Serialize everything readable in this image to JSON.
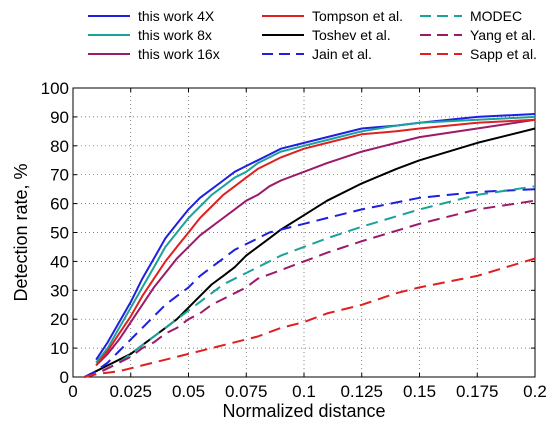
{
  "chart_data": {
    "type": "line",
    "title": "",
    "xlabel": "Normalized distance",
    "ylabel": "Detection rate, %",
    "xlim": [
      0,
      0.2
    ],
    "ylim": [
      0,
      100
    ],
    "xticks": [
      0,
      0.025,
      0.05,
      0.075,
      0.1,
      0.125,
      0.15,
      0.175,
      0.2
    ],
    "xtick_labels": [
      "0",
      "0.025",
      "0.05",
      "0.075",
      "0.1",
      "0.125",
      "0.15",
      "0.175",
      "0.2"
    ],
    "yticks": [
      0,
      10,
      20,
      30,
      40,
      50,
      60,
      70,
      80,
      90,
      100
    ],
    "ytick_labels": [
      "0",
      "10",
      "20",
      "30",
      "40",
      "50",
      "60",
      "70",
      "80",
      "90",
      "100"
    ],
    "grid": true,
    "legend_position": "top",
    "legend_columns": 3,
    "series": [
      {
        "name": "this work 4X",
        "color": "#1f1fe0",
        "dash": "solid",
        "x": [
          0.01,
          0.015,
          0.02,
          0.025,
          0.03,
          0.035,
          0.04,
          0.045,
          0.05,
          0.055,
          0.06,
          0.065,
          0.07,
          0.075,
          0.08,
          0.085,
          0.09,
          0.1,
          0.11,
          0.125,
          0.14,
          0.15,
          0.175,
          0.2
        ],
        "y": [
          6,
          12,
          19,
          26,
          34,
          41,
          48,
          53,
          58,
          62,
          65,
          68,
          71,
          73,
          75,
          77,
          79,
          81,
          83,
          86,
          87,
          88,
          90,
          91
        ]
      },
      {
        "name": "this work 8x",
        "color": "#1aa39a",
        "dash": "solid",
        "x": [
          0.01,
          0.015,
          0.02,
          0.025,
          0.03,
          0.035,
          0.04,
          0.045,
          0.05,
          0.055,
          0.06,
          0.065,
          0.07,
          0.075,
          0.08,
          0.085,
          0.09,
          0.1,
          0.11,
          0.125,
          0.14,
          0.15,
          0.175,
          0.2
        ],
        "y": [
          5,
          10,
          17,
          24,
          31,
          38,
          45,
          50,
          55,
          59,
          63,
          66,
          69,
          71,
          74,
          76,
          78,
          80,
          82,
          85,
          87,
          88,
          89,
          90
        ]
      },
      {
        "name": "this work 16x",
        "color": "#9c1a6a",
        "dash": "solid",
        "x": [
          0.01,
          0.015,
          0.02,
          0.025,
          0.03,
          0.035,
          0.04,
          0.045,
          0.05,
          0.055,
          0.06,
          0.065,
          0.07,
          0.075,
          0.08,
          0.085,
          0.09,
          0.1,
          0.11,
          0.125,
          0.14,
          0.15,
          0.175,
          0.2
        ],
        "y": [
          4,
          8,
          13,
          19,
          25,
          31,
          36,
          41,
          45,
          49,
          52,
          55,
          58,
          61,
          63,
          66,
          68,
          71,
          74,
          78,
          81,
          83,
          86,
          89
        ]
      },
      {
        "name": "Tompson et al.",
        "color": "#e02020",
        "dash": "solid",
        "x": [
          0.01,
          0.015,
          0.02,
          0.025,
          0.03,
          0.035,
          0.04,
          0.045,
          0.05,
          0.055,
          0.06,
          0.065,
          0.07,
          0.075,
          0.08,
          0.085,
          0.09,
          0.1,
          0.11,
          0.125,
          0.14,
          0.15,
          0.175,
          0.2
        ],
        "y": [
          4,
          9,
          15,
          21,
          28,
          34,
          40,
          45,
          50,
          55,
          59,
          63,
          66,
          69,
          72,
          74,
          76,
          79,
          81,
          84,
          85,
          86,
          88,
          89
        ]
      },
      {
        "name": "Toshev et al.",
        "color": "#000000",
        "dash": "solid",
        "x": [
          0.005,
          0.01,
          0.015,
          0.02,
          0.025,
          0.03,
          0.035,
          0.04,
          0.045,
          0.05,
          0.055,
          0.06,
          0.065,
          0.07,
          0.075,
          0.08,
          0.085,
          0.09,
          0.1,
          0.11,
          0.125,
          0.14,
          0.15,
          0.175,
          0.2
        ],
        "y": [
          0,
          2,
          4,
          6,
          8,
          11,
          14,
          17,
          20,
          24,
          28,
          32,
          35,
          38,
          42,
          45,
          48,
          51,
          56,
          61,
          67,
          72,
          75,
          81,
          86
        ]
      },
      {
        "name": "Jain et al.",
        "color": "#1f1fe0",
        "dash": "dashed",
        "x": [
          0.005,
          0.01,
          0.015,
          0.02,
          0.025,
          0.03,
          0.035,
          0.04,
          0.045,
          0.05,
          0.055,
          0.06,
          0.065,
          0.07,
          0.075,
          0.08,
          0.085,
          0.09,
          0.1,
          0.11,
          0.125,
          0.15,
          0.175,
          0.2
        ],
        "y": [
          0,
          2,
          5,
          9,
          13,
          17,
          21,
          25,
          28,
          31,
          35,
          38,
          41,
          44,
          46,
          48,
          50,
          51,
          53,
          55,
          58,
          62,
          64,
          65
        ]
      },
      {
        "name": "MODEC",
        "color": "#1aa39a",
        "dash": "dashed",
        "x": [
          0.005,
          0.01,
          0.015,
          0.02,
          0.025,
          0.03,
          0.035,
          0.04,
          0.045,
          0.05,
          0.055,
          0.06,
          0.065,
          0.07,
          0.075,
          0.08,
          0.09,
          0.1,
          0.11,
          0.125,
          0.15,
          0.175,
          0.2
        ],
        "y": [
          0,
          1,
          3,
          5,
          8,
          11,
          14,
          17,
          20,
          23,
          26,
          29,
          32,
          34,
          36,
          38,
          42,
          45,
          48,
          52,
          58,
          63,
          66
        ]
      },
      {
        "name": "Yang et al.",
        "color": "#9c1a6a",
        "dash": "dashed",
        "x": [
          0.005,
          0.01,
          0.015,
          0.02,
          0.025,
          0.03,
          0.035,
          0.04,
          0.045,
          0.05,
          0.055,
          0.06,
          0.065,
          0.07,
          0.075,
          0.08,
          0.09,
          0.1,
          0.11,
          0.125,
          0.15,
          0.175,
          0.2
        ],
        "y": [
          0,
          1,
          3,
          5,
          7,
          10,
          12,
          15,
          17,
          20,
          22,
          25,
          27,
          29,
          31,
          34,
          37,
          40,
          43,
          47,
          53,
          58,
          61
        ]
      },
      {
        "name": "Sapp et al.",
        "color": "#e02020",
        "dash": "dashed",
        "x": [
          0.005,
          0.01,
          0.02,
          0.03,
          0.04,
          0.05,
          0.06,
          0.07,
          0.08,
          0.09,
          0.1,
          0.11,
          0.125,
          0.14,
          0.15,
          0.175,
          0.2
        ],
        "y": [
          0,
          1,
          2,
          4,
          6,
          8,
          10,
          12,
          14,
          17,
          19,
          22,
          25,
          29,
          31,
          35,
          41
        ]
      }
    ]
  }
}
